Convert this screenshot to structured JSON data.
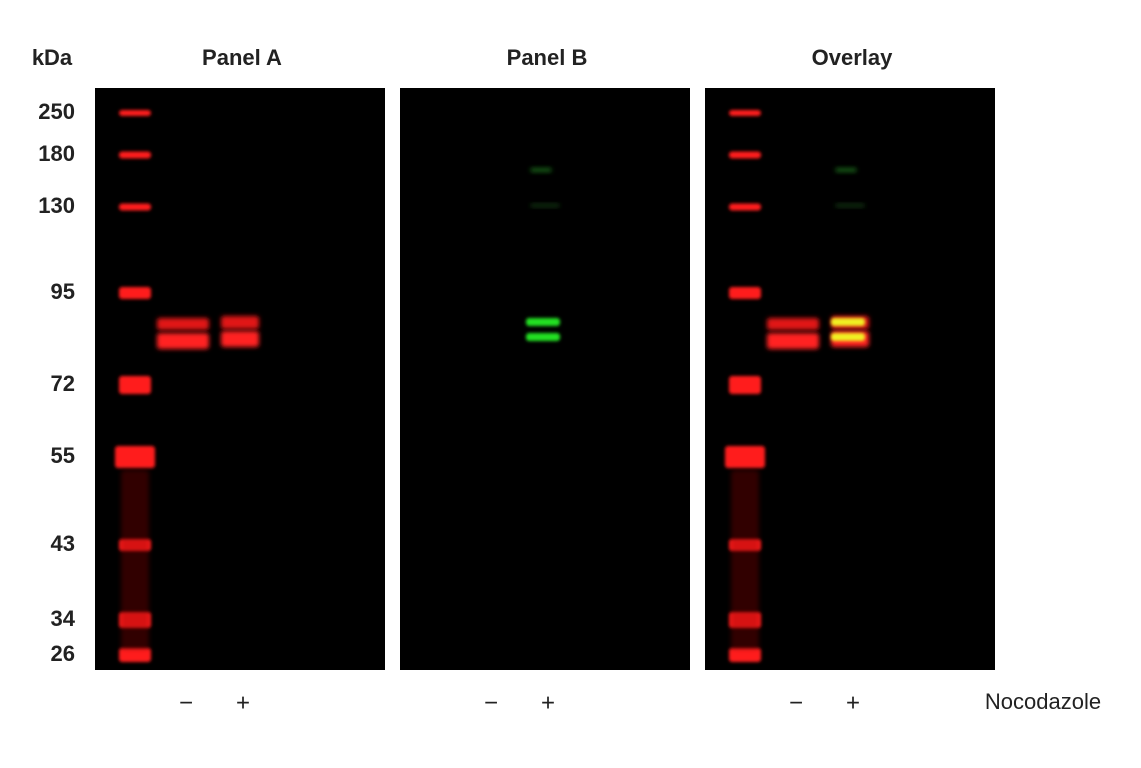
{
  "kda_label": "kDa",
  "markers": [
    "250",
    "180",
    "130",
    "95",
    "72",
    "55",
    "43",
    "34",
    "26"
  ],
  "panels": [
    {
      "title": "Panel A",
      "lanes": [
        "−",
        "+"
      ]
    },
    {
      "title": "Panel B",
      "lanes": [
        "−",
        "+"
      ]
    },
    {
      "title": "Overlay",
      "lanes": [
        "−",
        "+"
      ]
    }
  ],
  "treatment": "Nocodazole"
}
